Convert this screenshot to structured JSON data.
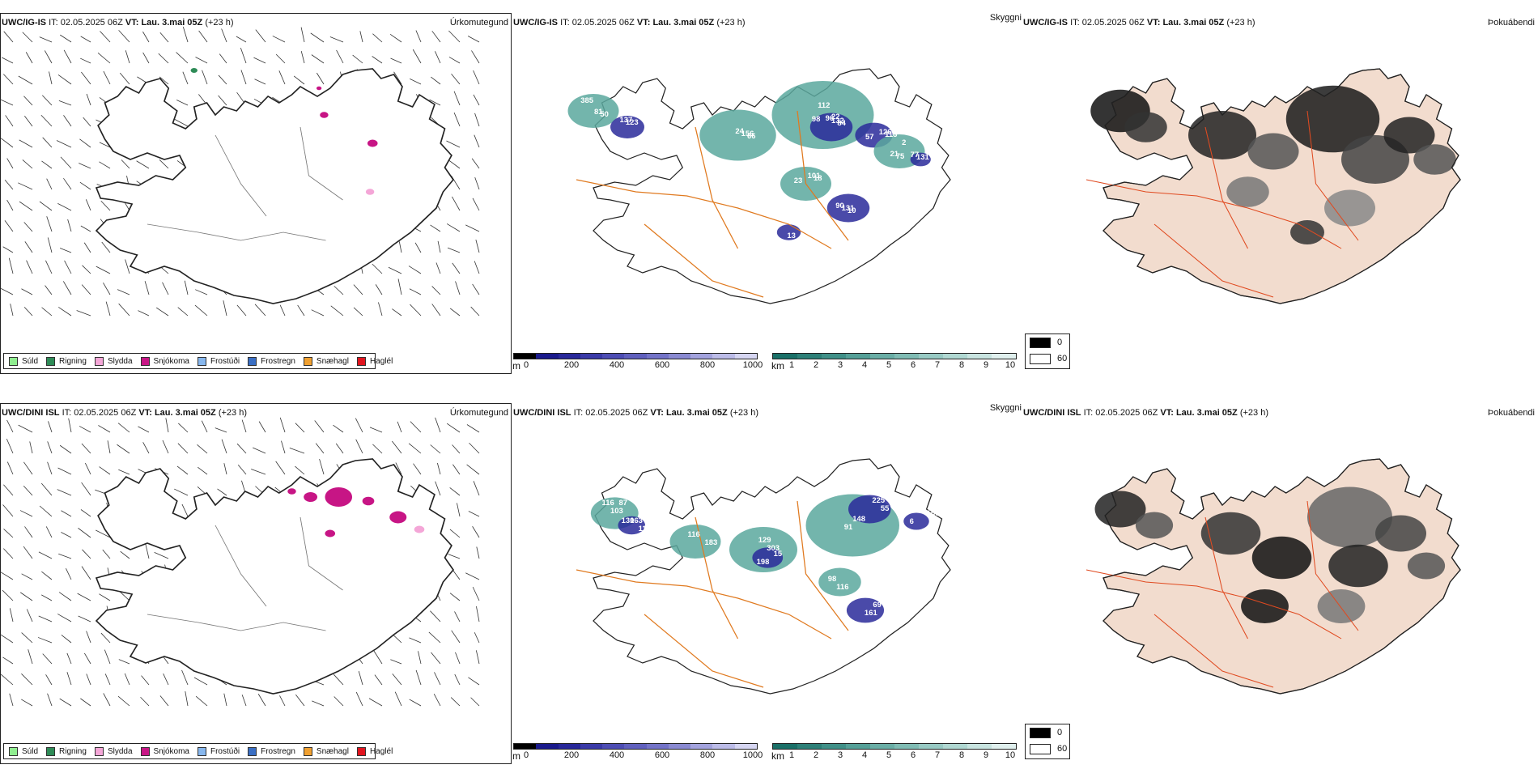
{
  "header_prefix": {
    "it": "IT:",
    "vt": "VT:"
  },
  "rows": [
    {
      "model": "UWC/IG-IS",
      "init_time": "02.05.2025 06Z",
      "valid_time": "Lau. 3.mai 05Z",
      "lead": "(+23 h)",
      "panels": {
        "precip": {
          "title": "Úrkomutegund"
        },
        "visibility": {
          "title": "Skyggni"
        },
        "fog": {
          "title": "Þokuábendi"
        }
      },
      "visibility_labels": [
        "385",
        "123",
        "66",
        "112",
        "84",
        "57",
        "2",
        "23",
        "10",
        "108",
        "131",
        "50",
        "137",
        "156",
        "98",
        "132",
        "113",
        "75",
        "18",
        "131",
        "194",
        "77",
        "81",
        "39",
        "24",
        "22",
        "96",
        "126",
        "21",
        "101",
        "90",
        "13"
      ]
    },
    {
      "model": "UWC/DINI ISL",
      "init_time": "02.05.2025 06Z",
      "valid_time": "Lau. 3.mai 05Z",
      "lead": "(+23 h)",
      "panels": {
        "precip": {
          "title": "Úrkomutegund"
        },
        "visibility": {
          "title": "Skyggni"
        },
        "fog": {
          "title": "Þokuábendi"
        }
      },
      "visibility_labels": [
        "116",
        "163",
        "183",
        "129",
        "15",
        "91",
        "225",
        "98",
        "161",
        "150",
        "103",
        "118",
        "116",
        "303",
        "198",
        "148",
        "55",
        "116",
        "69",
        "6",
        "87",
        "130"
      ]
    }
  ],
  "precip_legend": [
    {
      "label": "Súld",
      "color": "#90ee90"
    },
    {
      "label": "Rigning",
      "color": "#2e8b57"
    },
    {
      "label": "Slydda",
      "color": "#f4a6d7"
    },
    {
      "label": "Snjókoma",
      "color": "#c71585"
    },
    {
      "label": "Frostúði",
      "color": "#87b7ee"
    },
    {
      "label": "Frostregn",
      "color": "#3a6fc4"
    },
    {
      "label": "Snæhagl",
      "color": "#f0a030"
    },
    {
      "label": "Haglél",
      "color": "#e0141e"
    }
  ],
  "cloud_base_bar": {
    "unit": "m",
    "ticks": [
      "0",
      "200",
      "400",
      "600",
      "800",
      "1000"
    ],
    "colors": [
      "#000000",
      "#1a1a8c",
      "#28289a",
      "#3a3aa8",
      "#4d4db4",
      "#6060be",
      "#7373c8",
      "#8a8ad2",
      "#a3a3de",
      "#bcbce8",
      "#d6d6f2"
    ]
  },
  "visibility_bar": {
    "unit": "km",
    "ticks": [
      "1",
      "2",
      "3",
      "4",
      "5",
      "6",
      "7",
      "8",
      "9",
      "10"
    ],
    "colors": [
      "#1a7068",
      "#2d8078",
      "#409088",
      "#55a098",
      "#6aaea6",
      "#80bcb4",
      "#98cac4",
      "#b0d8d2",
      "#c8e4e0",
      "#e0f0ee"
    ]
  },
  "fog_legend": [
    {
      "label": "0",
      "color": "#000000"
    },
    {
      "label": "60",
      "color": "#ffffff"
    }
  ]
}
